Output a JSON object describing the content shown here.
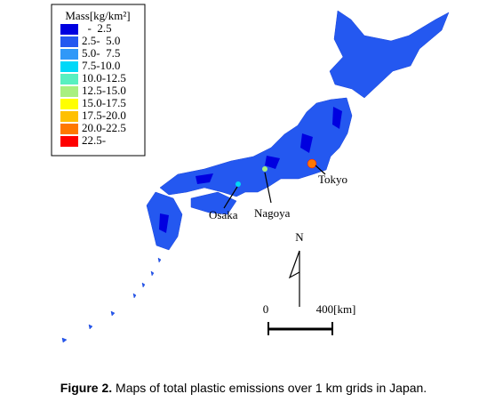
{
  "legend": {
    "title": "Mass[kg/km²]",
    "entries": [
      {
        "label": "  -  2.5",
        "color": "#0000e0"
      },
      {
        "label": "2.5-  5.0",
        "color": "#2458f0"
      },
      {
        "label": "5.0-  7.5",
        "color": "#3098f8"
      },
      {
        "label": "7.5-10.0",
        "color": "#00d8f8"
      },
      {
        "label": "10.0-12.5",
        "color": "#58f0c0"
      },
      {
        "label": "12.5-15.0",
        "color": "#a8f080"
      },
      {
        "label": "15.0-17.5",
        "color": "#ffff00"
      },
      {
        "label": "17.5-20.0",
        "color": "#ffc000"
      },
      {
        "label": "20.0-22.5",
        "color": "#ff7800"
      },
      {
        "label": "22.5-",
        "color": "#ff0000"
      }
    ]
  },
  "places": {
    "tokyo": "Tokyo",
    "osaka": "Osaka",
    "nagoya": "Nagoya"
  },
  "compass": "N",
  "scale": {
    "start": "0",
    "end": "400[km]"
  },
  "caption": {
    "label": "Figure 2.",
    "text": " Maps of total plastic emissions over 1 km grids in Japan."
  }
}
